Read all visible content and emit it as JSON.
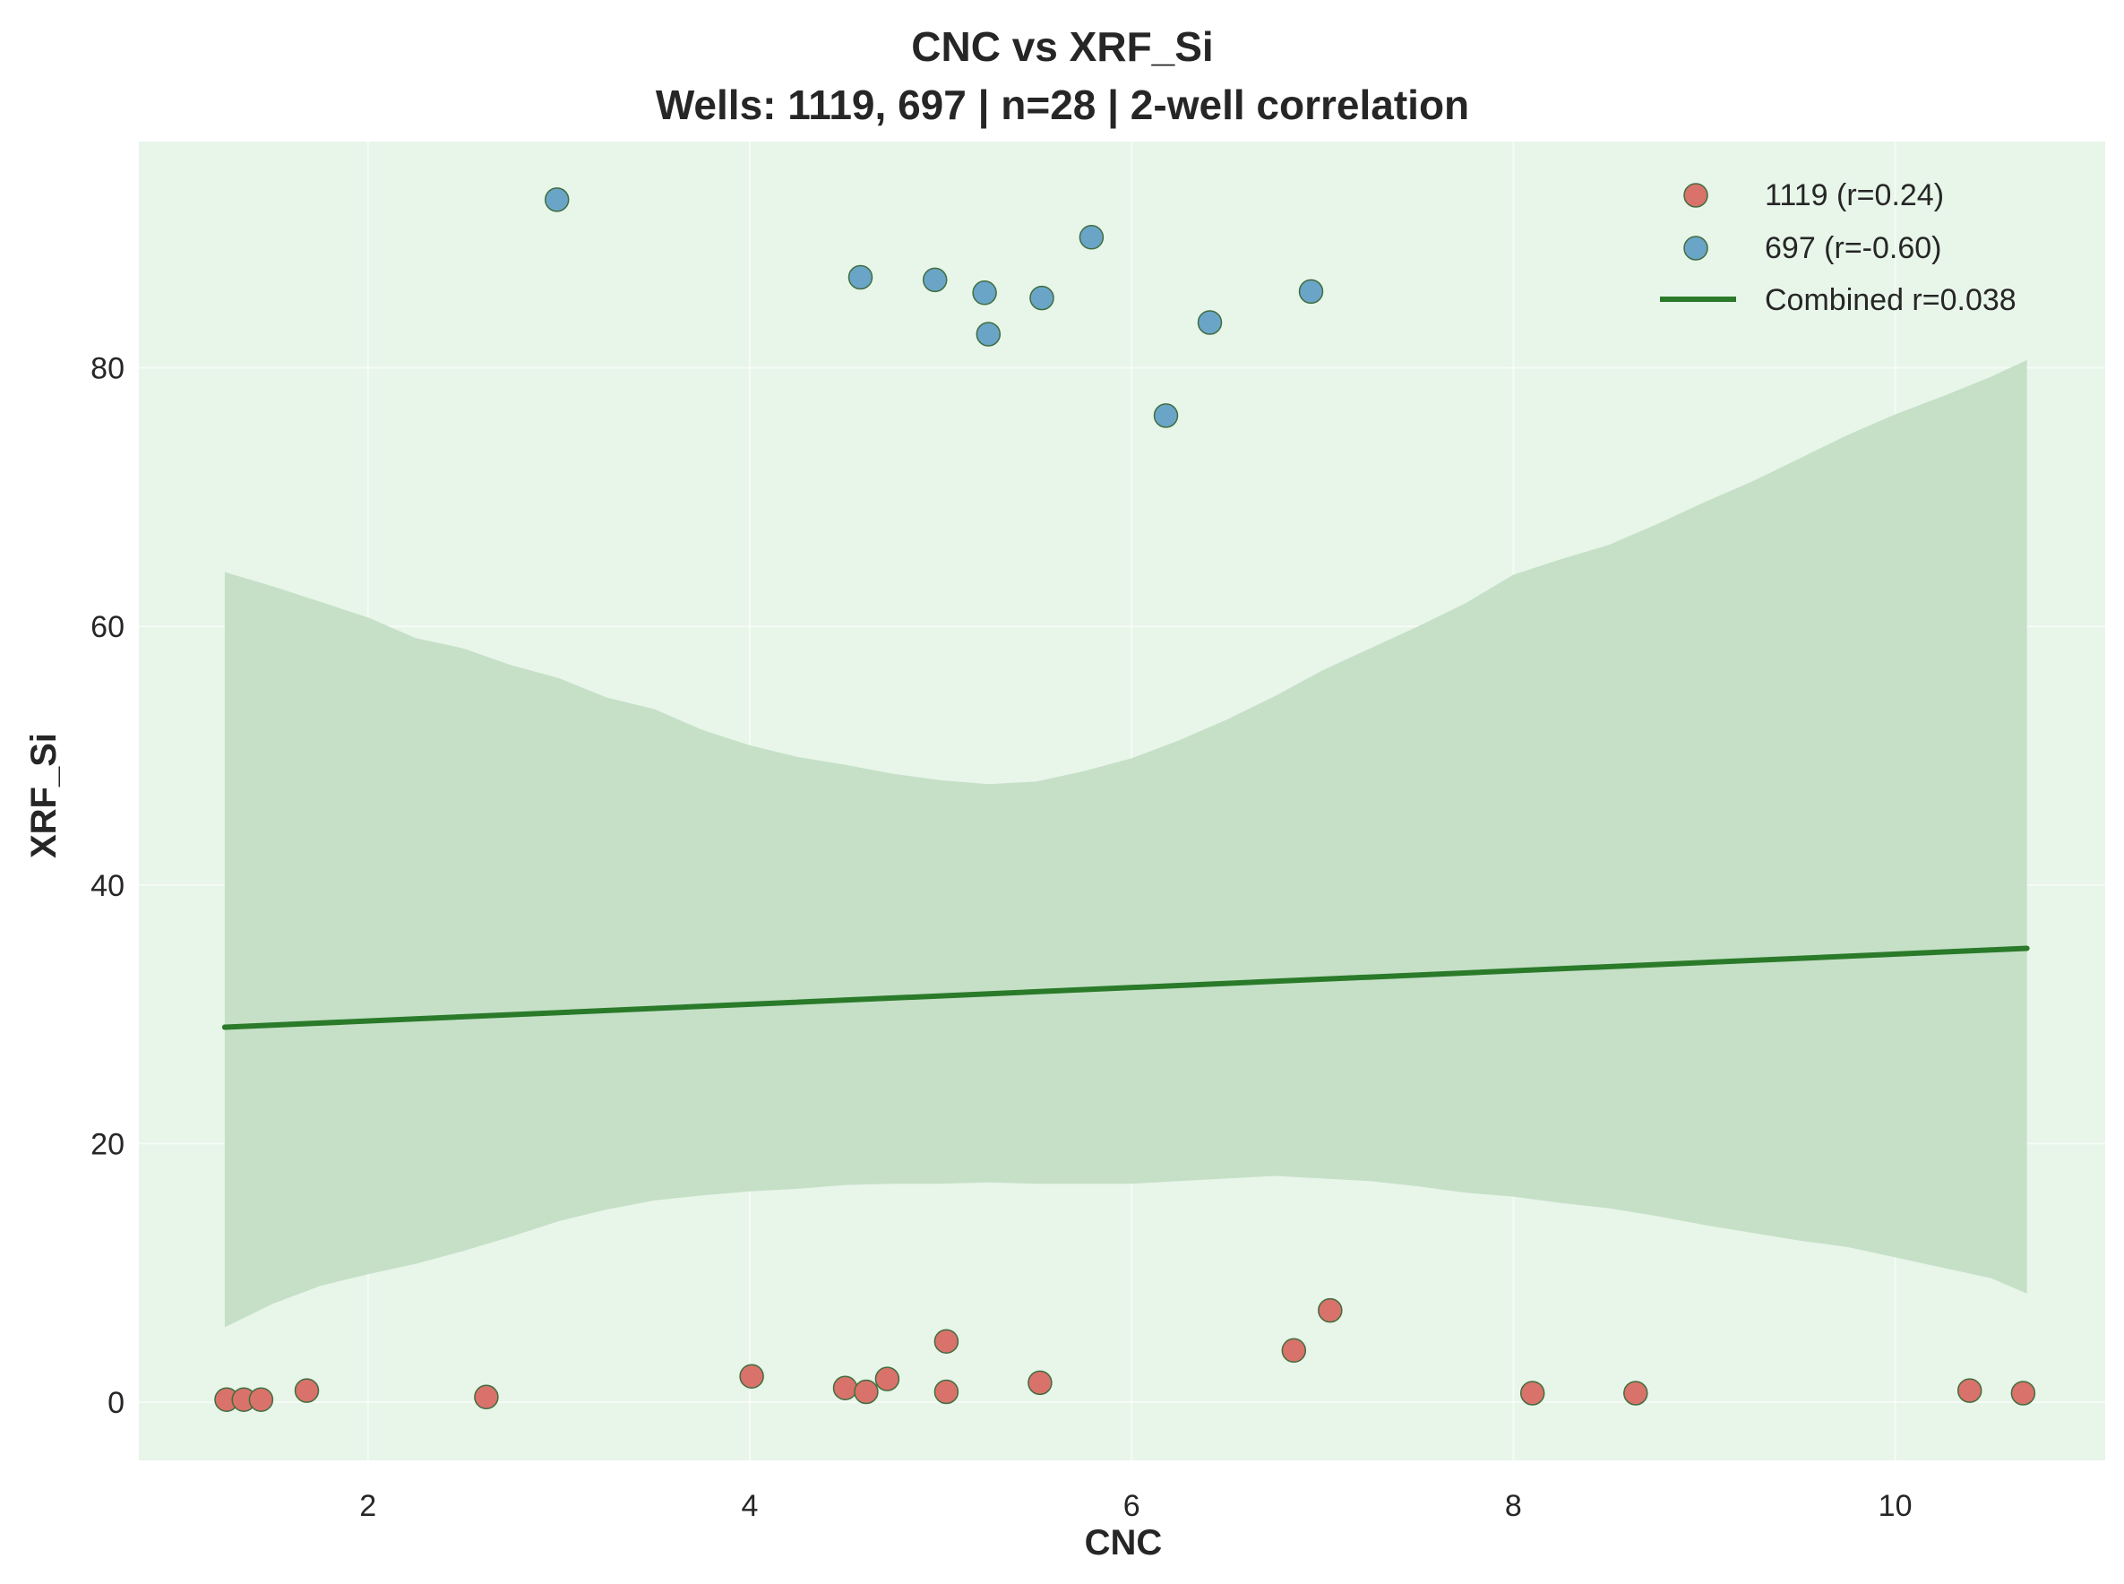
{
  "chart_data": {
    "type": "scatter",
    "title": "CNC vs XRF_Si",
    "subtitle": "Wells: 1119, 697 | n=28 | 2-well correlation",
    "xlabel": "CNC",
    "ylabel": "XRF_Si",
    "xlim": [
      0.8,
      11.1
    ],
    "ylim": [
      -4.5,
      97.5
    ],
    "xticks": [
      2,
      4,
      6,
      8,
      10
    ],
    "yticks": [
      0,
      20,
      40,
      60,
      80
    ],
    "grid": true,
    "legend_position": "top-right",
    "colors": {
      "plot_bg": "#e8f5e9",
      "series_1119": "#d9726a",
      "series_697": "#6aa5c8",
      "marker_edge": "#3f6e3f",
      "fit_line": "#2a7a2a",
      "band": "#c5e0c7"
    },
    "series": [
      {
        "name": "1119 (r=0.24)",
        "color": "#d9726a",
        "points": [
          [
            1.26,
            0.2
          ],
          [
            1.35,
            0.2
          ],
          [
            1.44,
            0.2
          ],
          [
            1.68,
            0.9
          ],
          [
            2.62,
            0.4
          ],
          [
            4.01,
            2.0
          ],
          [
            4.5,
            1.1
          ],
          [
            4.61,
            0.8
          ],
          [
            4.72,
            1.8
          ],
          [
            5.03,
            4.7
          ],
          [
            5.03,
            0.8
          ],
          [
            5.52,
            1.5
          ],
          [
            6.85,
            4.0
          ],
          [
            7.04,
            7.1
          ],
          [
            8.1,
            0.7
          ],
          [
            8.64,
            0.7
          ],
          [
            10.39,
            0.9
          ],
          [
            10.67,
            0.7
          ]
        ]
      },
      {
        "name": "697 (r=-0.60)",
        "color": "#6aa5c8",
        "points": [
          [
            2.99,
            93.0
          ],
          [
            4.58,
            87.0
          ],
          [
            4.97,
            86.8
          ],
          [
            5.23,
            85.8
          ],
          [
            5.25,
            82.6
          ],
          [
            5.53,
            85.4
          ],
          [
            5.79,
            90.1
          ],
          [
            6.18,
            76.3
          ],
          [
            6.41,
            83.5
          ],
          [
            6.94,
            85.9
          ]
        ]
      }
    ],
    "fit": {
      "name": "Combined r=0.038",
      "x": [
        1.25,
        10.69
      ],
      "y": [
        29.0,
        35.1
      ]
    },
    "confidence_band": {
      "x": [
        1.25,
        1.5,
        1.75,
        2.0,
        2.25,
        2.5,
        2.75,
        3.0,
        3.25,
        3.5,
        3.75,
        4.0,
        4.25,
        4.5,
        4.75,
        5.0,
        5.25,
        5.5,
        5.75,
        6.0,
        6.25,
        6.5,
        6.75,
        7.0,
        7.25,
        7.5,
        7.75,
        8.0,
        8.25,
        8.5,
        8.75,
        9.0,
        9.25,
        9.5,
        9.75,
        10.0,
        10.25,
        10.5,
        10.69
      ],
      "upper": [
        64.2,
        63.1,
        61.9,
        60.7,
        59.1,
        58.3,
        57.0,
        56.0,
        54.5,
        53.6,
        52.0,
        50.8,
        49.9,
        49.3,
        48.6,
        48.1,
        47.8,
        48.0,
        48.8,
        49.8,
        51.2,
        52.8,
        54.6,
        56.6,
        58.3,
        60.0,
        61.8,
        64.0,
        65.2,
        66.3,
        67.9,
        69.6,
        71.2,
        73.0,
        74.8,
        76.4,
        77.8,
        79.3,
        80.6
      ],
      "lower": [
        5.8,
        7.6,
        9.0,
        9.9,
        10.7,
        11.7,
        12.8,
        14.0,
        14.9,
        15.6,
        16.0,
        16.3,
        16.5,
        16.8,
        16.9,
        16.9,
        17.0,
        16.9,
        16.9,
        16.9,
        17.1,
        17.3,
        17.5,
        17.3,
        17.1,
        16.7,
        16.2,
        15.9,
        15.4,
        15.0,
        14.4,
        13.7,
        13.1,
        12.5,
        12.0,
        11.2,
        10.4,
        9.6,
        8.4
      ]
    }
  }
}
